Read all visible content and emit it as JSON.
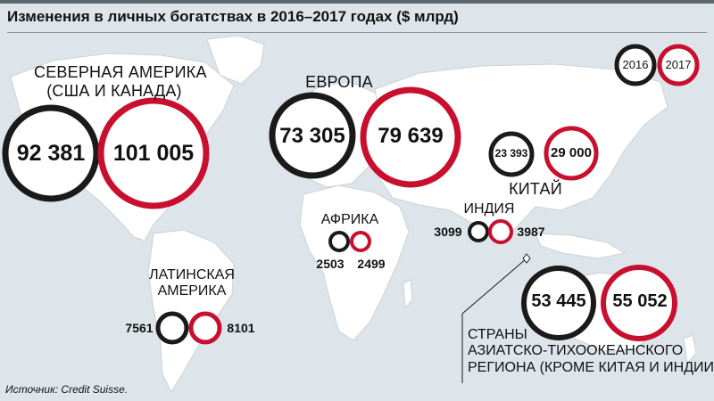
{
  "title": "Изменения в личных богатствах в 2016–2017 годах ($ млрд)",
  "source": "Источник: Credit Suisse.",
  "colors": {
    "background": "#dde5ea",
    "land": "#ffffff",
    "year_2016": "#1a1a1a",
    "year_2017": "#c8102e"
  },
  "legend": {
    "y2016": "2016",
    "y2017": "2017",
    "placement": "top-right"
  },
  "regions": {
    "north_america": {
      "line1": "СЕВЕРНАЯ АМЕРИКА",
      "line2": "(США И КАНАДА)",
      "v2016": "92 381",
      "v2017": "101 005"
    },
    "europe": {
      "line1": "ЕВРОПА",
      "v2016": "73 305",
      "v2017": "79 639"
    },
    "china": {
      "line1": "КИТАЙ",
      "v2016": "23 393",
      "v2017": "29 000"
    },
    "africa": {
      "line1": "АФРИКА",
      "v2016": "2503",
      "v2017": "2499"
    },
    "india": {
      "line1": "ИНДИЯ",
      "v2016": "3099",
      "v2017": "3987"
    },
    "latin_america": {
      "line1": "ЛАТИНСКАЯ",
      "line2": "АМЕРИКА",
      "v2016": "7561",
      "v2017": "8101"
    },
    "asia_pacific": {
      "line1": "СТРАНЫ",
      "line2": "АЗИАТСКО-ТИХООКЕАНСКОГО",
      "line3": "РЕГИОНА (КРОМЕ КИТАЯ И ИНДИИ)",
      "v2016": "53 445",
      "v2017": "55 052"
    }
  },
  "chart_data": {
    "type": "bubble-map",
    "title": "Изменения в личных богатствах в 2016–2017 годах ($ млрд)",
    "unit": "$ млрд",
    "series": [
      {
        "name": "2016",
        "color": "#1a1a1a",
        "values": [
          92381,
          73305,
          23393,
          2503,
          3099,
          7561,
          53445
        ]
      },
      {
        "name": "2017",
        "color": "#c8102e",
        "values": [
          101005,
          79639,
          29000,
          2499,
          3987,
          8101,
          55052
        ]
      }
    ],
    "categories": [
      "СЕВЕРНАЯ АМЕРИКА (США И КАНАДА)",
      "ЕВРОПА",
      "КИТАЙ",
      "АФРИКА",
      "ИНДИЯ",
      "ЛАТИНСКАЯ АМЕРИКА",
      "СТРАНЫ АЗИАТСКО-ТИХООКЕАНСКОГО РЕГИОНА (КРОМЕ КИТАЯ И ИНДИИ)"
    ],
    "source": "Источник: Credit Suisse."
  }
}
